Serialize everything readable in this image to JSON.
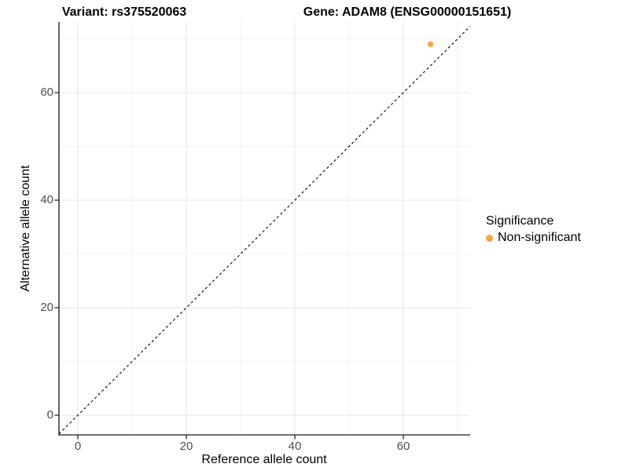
{
  "header": {
    "title_left": "Variant: rs375520063",
    "title_right": "Gene: ADAM8 (ENSG00000151651)"
  },
  "axes": {
    "x_label": "Reference allele count",
    "y_label": "Alternative allele count",
    "x_tick_labels": [
      "0",
      "20",
      "40",
      "60"
    ],
    "y_tick_labels": [
      "0",
      "20",
      "40",
      "60"
    ]
  },
  "legend": {
    "title": "Significance",
    "items": [
      {
        "label": "Non-significant",
        "color": "#FBA33C"
      }
    ]
  },
  "chart_data": {
    "type": "scatter",
    "title": "Variant: rs375520063   |   Gene: ADAM8 (ENSG00000151651)",
    "xlabel": "Reference allele count",
    "ylabel": "Alternative allele count",
    "xlim": [
      -3.5,
      72.3
    ],
    "ylim": [
      -3.7,
      73.1
    ],
    "x_ticks": [
      0,
      20,
      40,
      60
    ],
    "y_ticks": [
      0,
      20,
      40,
      60
    ],
    "minor_gridlines": [
      10,
      30,
      50,
      70
    ],
    "grid": "major and minor, light gray on white",
    "legend_position": "right",
    "series": [
      {
        "name": "Non-significant",
        "color": "#FBA33C",
        "points": [
          {
            "x": 65,
            "y": 69
          }
        ]
      }
    ],
    "reference_line": {
      "kind": "identity y=x",
      "style": "dashed",
      "color": "#000000"
    }
  },
  "colors": {
    "point": "#FBA33C",
    "axis_line": "#3f3f3f",
    "tick_mark": "#333333",
    "tick_label": "#4d4d4d",
    "grid_major": "#e5e5e5",
    "grid_minor": "#f2f2f2",
    "background": "#ffffff"
  }
}
